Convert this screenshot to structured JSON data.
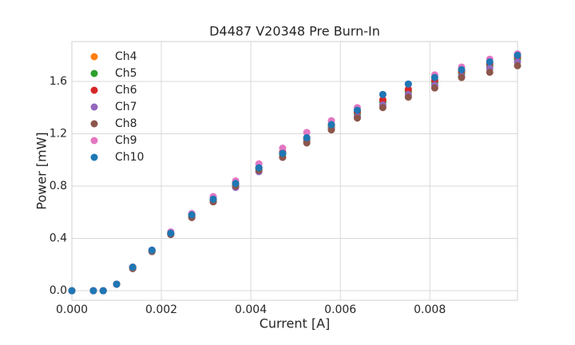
{
  "chart_data": {
    "type": "scatter",
    "title": "D4487 V20348 Pre Burn-In",
    "x_label": "Current [A]",
    "y_label": "Power [mW]",
    "x": [
      0,
      0.00048,
      0.0007,
      0.001,
      0.00136,
      0.00179,
      0.00221,
      0.00268,
      0.00316,
      0.00366,
      0.00418,
      0.00471,
      0.00525,
      0.0058,
      0.00638,
      0.00695,
      0.00752,
      0.00811,
      0.00871,
      0.00934,
      0.00996
    ],
    "series": [
      {
        "name": "Ch4",
        "color": "#ff7f0e",
        "values": [
          0,
          0,
          0,
          0.05,
          0.18,
          0.31,
          0.44,
          0.57,
          0.7,
          0.82,
          0.94,
          1.05,
          1.16,
          1.26,
          1.36,
          1.45,
          1.53,
          1.6,
          1.67,
          1.73,
          1.78
        ]
      },
      {
        "name": "Ch5",
        "color": "#2ca02c",
        "values": [
          0,
          0,
          0,
          0.05,
          0.17,
          0.3,
          0.44,
          0.57,
          0.69,
          0.81,
          0.93,
          1.04,
          1.15,
          1.25,
          1.35,
          1.44,
          1.52,
          1.59,
          1.66,
          1.72,
          1.77
        ]
      },
      {
        "name": "Ch6",
        "color": "#d62728",
        "values": [
          0,
          0,
          0,
          0.05,
          0.18,
          0.31,
          0.44,
          0.58,
          0.7,
          0.82,
          0.94,
          1.06,
          1.17,
          1.27,
          1.37,
          1.46,
          1.54,
          1.61,
          1.68,
          1.74,
          1.79
        ]
      },
      {
        "name": "Ch7",
        "color": "#9467bd",
        "values": [
          0,
          0,
          0,
          0.05,
          0.17,
          0.3,
          0.43,
          0.56,
          0.68,
          0.79,
          0.91,
          1.02,
          1.14,
          1.24,
          1.33,
          1.42,
          1.5,
          1.57,
          1.64,
          1.7,
          1.75
        ]
      },
      {
        "name": "Ch8",
        "color": "#8c564b",
        "values": [
          0,
          0,
          0,
          0.05,
          0.17,
          0.3,
          0.43,
          0.56,
          0.68,
          0.8,
          0.92,
          1.02,
          1.13,
          1.23,
          1.32,
          1.4,
          1.48,
          1.55,
          1.63,
          1.67,
          1.72
        ]
      },
      {
        "name": "Ch9",
        "color": "#e377c2",
        "values": [
          0,
          0,
          0,
          0.05,
          0.18,
          0.31,
          0.45,
          0.59,
          0.72,
          0.84,
          0.97,
          1.09,
          1.21,
          1.3,
          1.4,
          1.5,
          1.58,
          1.65,
          1.71,
          1.77,
          1.81
        ]
      },
      {
        "name": "Ch10",
        "color": "#1f77b4",
        "values": [
          0,
          0,
          0,
          0.05,
          0.18,
          0.31,
          0.44,
          0.58,
          0.7,
          0.82,
          0.94,
          1.05,
          1.17,
          1.27,
          1.38,
          1.5,
          1.58,
          1.63,
          1.69,
          1.75,
          1.8
        ]
      }
    ],
    "xlim": [
      0,
      0.00996
    ],
    "ylim": [
      -0.073,
      1.905
    ],
    "xticks": [
      {
        "value": 0,
        "label": "0.000"
      },
      {
        "value": 0.002,
        "label": "0.002"
      },
      {
        "value": 0.004,
        "label": "0.004"
      },
      {
        "value": 0.006,
        "label": "0.006"
      },
      {
        "value": 0.008,
        "label": "0.008"
      }
    ],
    "yticks": [
      {
        "value": 0,
        "label": "0.0"
      },
      {
        "value": 0.4,
        "label": "0.4"
      },
      {
        "value": 0.8,
        "label": "0.8"
      },
      {
        "value": 1.2,
        "label": "1.2"
      },
      {
        "value": 1.6,
        "label": "1.6"
      }
    ],
    "grid": true,
    "legend_position": "upper-left"
  }
}
